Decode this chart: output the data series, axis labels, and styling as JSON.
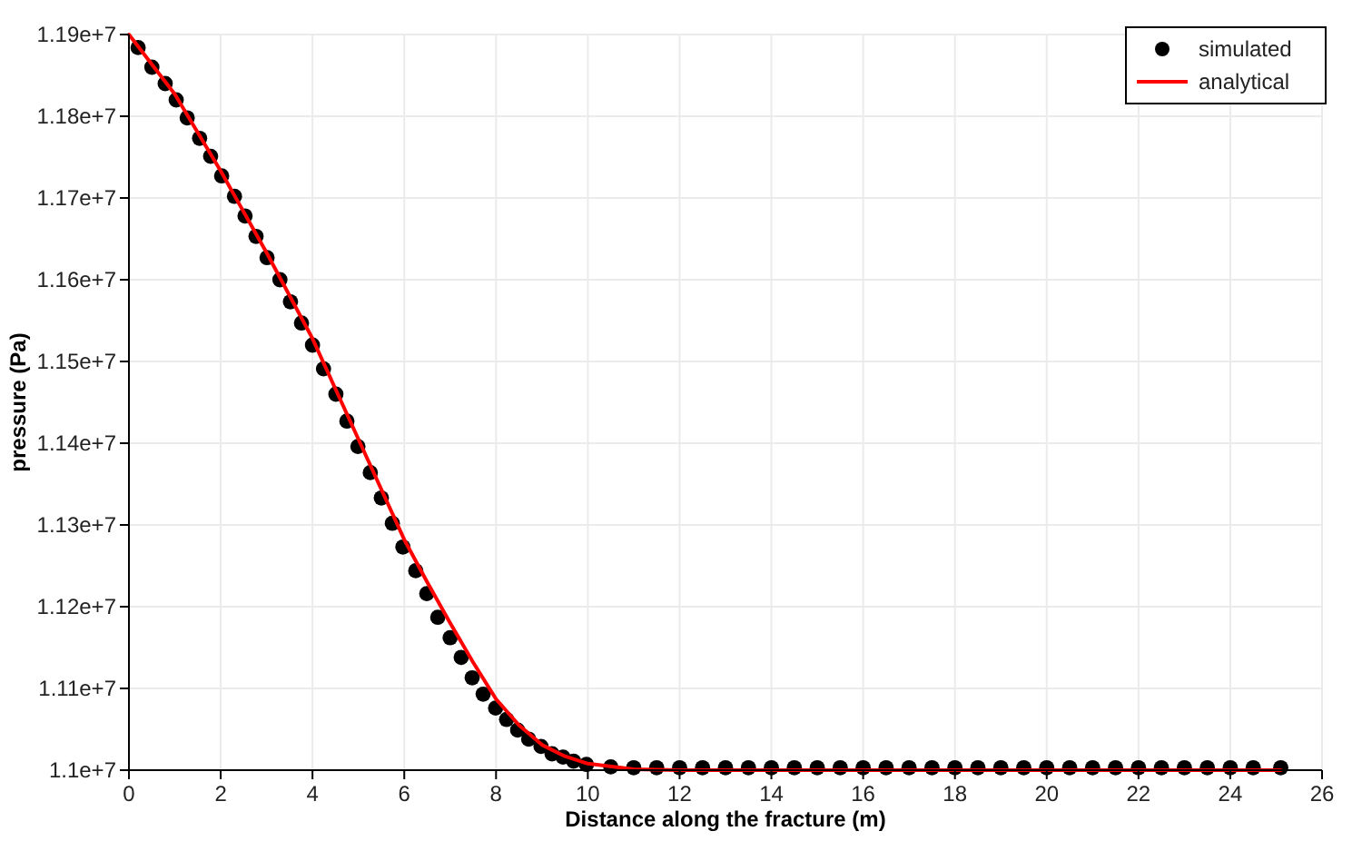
{
  "chart_data": {
    "type": "line",
    "xlabel": "Distance along the fracture (m)",
    "ylabel": "pressure (Pa)",
    "xlim": [
      0,
      26
    ],
    "xticks": [
      0,
      2,
      4,
      6,
      8,
      10,
      12,
      14,
      16,
      18,
      20,
      22,
      24,
      26
    ],
    "ylim": [
      11000000,
      11900000
    ],
    "yticks": [
      {
        "value": 11000000,
        "label": "1.1e+7"
      },
      {
        "value": 11100000,
        "label": "1.11e+7"
      },
      {
        "value": 11200000,
        "label": "1.12e+7"
      },
      {
        "value": 11300000,
        "label": "1.13e+7"
      },
      {
        "value": 11400000,
        "label": "1.14e+7"
      },
      {
        "value": 11500000,
        "label": "1.15e+7"
      },
      {
        "value": 11600000,
        "label": "1.16e+7"
      },
      {
        "value": 11700000,
        "label": "1.17e+7"
      },
      {
        "value": 11800000,
        "label": "1.18e+7"
      },
      {
        "value": 11900000,
        "label": "1.19e+7"
      }
    ],
    "grid": true,
    "legend": "top right",
    "series": [
      {
        "name": "simulated",
        "type": "scatter",
        "marker": "circle",
        "color": "#000000",
        "x": [
          0.2,
          0.5,
          0.79,
          1.03,
          1.27,
          1.54,
          1.78,
          2.02,
          2.3,
          2.53,
          2.77,
          3.01,
          3.29,
          3.52,
          3.76,
          4.0,
          4.24,
          4.51,
          4.75,
          4.99,
          5.26,
          5.5,
          5.74,
          5.97,
          6.25,
          6.49,
          6.73,
          7.0,
          7.24,
          7.48,
          7.72,
          7.99,
          8.23,
          8.47,
          8.71,
          8.98,
          9.22,
          9.46,
          9.69,
          9.97,
          10.5,
          11,
          11.5,
          12,
          12.5,
          13,
          13.5,
          14,
          14.5,
          15,
          15.5,
          16,
          16.5,
          17,
          17.5,
          18,
          18.5,
          19,
          19.5,
          20,
          20.5,
          21,
          21.5,
          22,
          22.5,
          23,
          23.5,
          24,
          24.5,
          25.1
        ],
        "values": [
          11884000,
          11860000,
          11840000,
          11820000,
          11798000,
          11773000,
          11751000,
          11727000,
          11702000,
          11678000,
          11653000,
          11627000,
          11600000,
          11573000,
          11547000,
          11520000,
          11491000,
          11460000,
          11427000,
          11396000,
          11364000,
          11333000,
          11302000,
          11273000,
          11244000,
          11216000,
          11187000,
          11162000,
          11138000,
          11113000,
          11093000,
          11076000,
          11062000,
          11049000,
          11038000,
          11029000,
          11020000,
          11016000,
          11011000,
          11007000,
          11004000,
          11003000,
          11003000,
          11003000,
          11003000,
          11003000,
          11003000,
          11003000,
          11003000,
          11003000,
          11003000,
          11003000,
          11003000,
          11003000,
          11003000,
          11003000,
          11003000,
          11003000,
          11003000,
          11003000,
          11003000,
          11003000,
          11003000,
          11003000,
          11003000,
          11003000,
          11003000,
          11003000,
          11003000,
          11003000
        ]
      },
      {
        "name": "analytical",
        "marker": "none",
        "color": "#ff0000",
        "x": [
          0,
          1,
          2,
          3,
          4,
          5,
          6,
          6.5,
          7,
          7.5,
          8,
          8.5,
          9,
          9.5,
          10,
          11,
          12,
          25.1
        ],
        "values": [
          11900000,
          11827000,
          11733000,
          11633000,
          11528000,
          11405000,
          11282000,
          11230000,
          11180000,
          11132000,
          11087000,
          11055000,
          11031000,
          11017000,
          11008000,
          11001000,
          11000000,
          11000000
        ]
      }
    ]
  }
}
